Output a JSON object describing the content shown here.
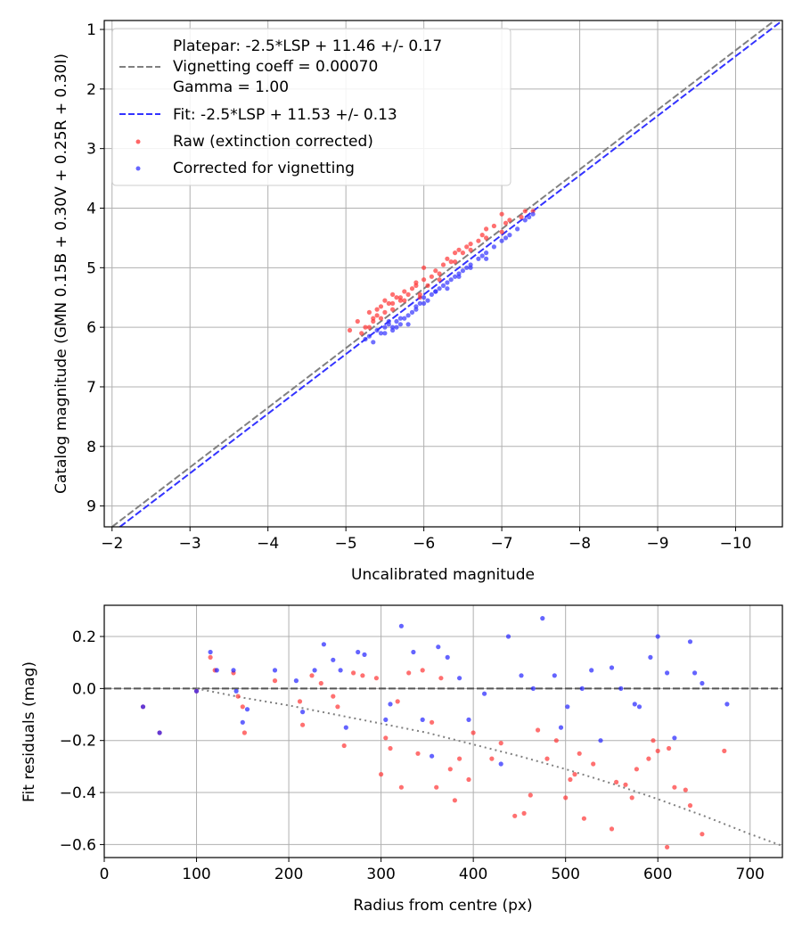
{
  "chart_data": [
    {
      "id": "calibration",
      "type": "scatter",
      "xlabel": "Uncalibrated magnitude",
      "ylabel": "Catalog magnitude (GMN 0.15B + 0.30V + 0.25R + 0.30I)",
      "xlim": [
        -1.9,
        -10.6
      ],
      "ylim": [
        9.35,
        0.85
      ],
      "x_ticks": [
        -2,
        -3,
        -4,
        -5,
        -6,
        -7,
        -8,
        -9,
        -10
      ],
      "x_tick_labels": [
        "−2",
        "−3",
        "−4",
        "−5",
        "−6",
        "−7",
        "−8",
        "−9",
        "−10"
      ],
      "y_ticks": [
        1,
        2,
        3,
        4,
        5,
        6,
        7,
        8,
        9
      ],
      "y_tick_labels": [
        "1",
        "2",
        "3",
        "4",
        "5",
        "6",
        "7",
        "8",
        "9"
      ],
      "grid": true,
      "legend_position": "top-left",
      "legend": [
        {
          "label": "Platepar: -2.5*LSP + 11.46 +/- 0.17",
          "style": "dashed-line",
          "color": "#808080"
        },
        {
          "label": "Vignetting coeff = 0.00070",
          "style": "none",
          "color": ""
        },
        {
          "label": "Gamma = 1.00",
          "style": "none",
          "color": ""
        },
        {
          "label": "Fit: -2.5*LSP + 11.53 +/- 0.13",
          "style": "dashed-line",
          "color": "#3333ff"
        },
        {
          "label": "Raw (extinction corrected)",
          "style": "dot",
          "color": "#ff3333"
        },
        {
          "label": "Corrected for vignetting",
          "style": "dot",
          "color": "#3333ff"
        }
      ],
      "series": [
        {
          "name": "Platepar line",
          "kind": "line",
          "color": "#808080",
          "dash": true,
          "x": [
            -1.9,
            -10.6
          ],
          "y": [
            9.45,
            0.75
          ]
        },
        {
          "name": "Fit line",
          "kind": "line",
          "color": "#3333ff",
          "dash": true,
          "x": [
            -1.9,
            -10.6
          ],
          "y": [
            9.55,
            0.85
          ]
        },
        {
          "name": "Raw (extinction corrected)",
          "kind": "scatter",
          "color": "#ff3333",
          "x": [
            -5.05,
            -5.15,
            -5.25,
            -5.3,
            -5.35,
            -5.4,
            -5.45,
            -5.5,
            -5.5,
            -5.55,
            -5.6,
            -5.6,
            -5.65,
            -5.7,
            -5.75,
            -5.8,
            -5.85,
            -5.9,
            -5.95,
            -6.0,
            -6.05,
            -6.1,
            -6.15,
            -6.2,
            -6.25,
            -6.3,
            -6.35,
            -6.4,
            -6.45,
            -6.5,
            -6.55,
            -6.6,
            -6.7,
            -6.75,
            -6.8,
            -6.9,
            -7.0,
            -7.05,
            -7.1,
            -7.25,
            -7.3,
            -7.4,
            -5.2,
            -5.3,
            -5.4,
            -5.6,
            -5.7,
            -5.9,
            -6.0,
            -6.2,
            -6.4,
            -6.6,
            -6.8,
            -7.0,
            -5.35,
            -5.45,
            -5.75,
            -5.95
          ],
          "y": [
            6.05,
            5.9,
            6.0,
            5.75,
            5.85,
            5.7,
            5.65,
            5.75,
            5.55,
            5.6,
            5.6,
            5.45,
            5.5,
            5.55,
            5.4,
            5.45,
            5.35,
            5.3,
            5.5,
            5.2,
            5.3,
            5.15,
            5.05,
            5.1,
            4.95,
            4.85,
            4.9,
            4.75,
            4.7,
            4.75,
            4.65,
            4.7,
            4.55,
            4.45,
            4.5,
            4.3,
            4.4,
            4.25,
            4.2,
            4.15,
            4.05,
            4.05,
            6.1,
            6.0,
            5.8,
            5.7,
            5.5,
            5.25,
            5.0,
            5.2,
            4.9,
            4.6,
            4.35,
            4.1,
            5.9,
            5.85,
            5.55,
            5.45
          ]
        },
        {
          "name": "Corrected for vignetting",
          "kind": "scatter",
          "color": "#3333ff",
          "x": [
            -5.25,
            -5.3,
            -5.4,
            -5.45,
            -5.5,
            -5.55,
            -5.6,
            -5.65,
            -5.7,
            -5.75,
            -5.8,
            -5.85,
            -5.9,
            -6.0,
            -6.05,
            -6.1,
            -6.15,
            -6.2,
            -6.25,
            -6.3,
            -6.35,
            -6.4,
            -6.45,
            -6.5,
            -6.55,
            -6.6,
            -6.7,
            -6.75,
            -6.8,
            -6.9,
            -7.0,
            -7.05,
            -7.2,
            -7.3,
            -7.4,
            -5.35,
            -5.5,
            -5.6,
            -5.7,
            -5.8,
            -5.95,
            -6.0,
            -6.15,
            -6.3,
            -6.45,
            -6.6,
            -6.8,
            -7.1,
            -7.35,
            -5.55,
            -5.65,
            -5.9
          ],
          "y": [
            6.2,
            6.15,
            6.05,
            6.1,
            6.0,
            5.95,
            6.0,
            5.9,
            5.95,
            5.85,
            5.8,
            5.75,
            5.65,
            5.6,
            5.55,
            5.45,
            5.4,
            5.35,
            5.3,
            5.25,
            5.2,
            5.15,
            5.1,
            5.05,
            5.0,
            4.95,
            4.85,
            4.8,
            4.75,
            4.65,
            4.55,
            4.5,
            4.35,
            4.2,
            4.1,
            6.25,
            6.1,
            6.05,
            5.85,
            5.95,
            5.6,
            5.5,
            5.4,
            5.35,
            5.15,
            5.0,
            4.85,
            4.45,
            4.15,
            5.9,
            6.0,
            5.7
          ]
        }
      ]
    },
    {
      "id": "residuals",
      "type": "scatter",
      "xlabel": "Radius from centre (px)",
      "ylabel": "Fit residuals (mag)",
      "xlim": [
        0,
        735
      ],
      "ylim": [
        -0.65,
        0.32
      ],
      "x_ticks": [
        0,
        100,
        200,
        300,
        400,
        500,
        600,
        700
      ],
      "x_tick_labels": [
        "0",
        "100",
        "200",
        "300",
        "400",
        "500",
        "600",
        "700"
      ],
      "y_ticks": [
        0.2,
        0.0,
        -0.2,
        -0.4,
        -0.6
      ],
      "y_tick_labels": [
        "0.2",
        "0.0",
        "−0.2",
        "−0.4",
        "−0.6"
      ],
      "grid": true,
      "series": [
        {
          "name": "Zero line",
          "kind": "line",
          "color": "#555555",
          "dash": true,
          "x": [
            0,
            735
          ],
          "y": [
            0,
            0
          ]
        },
        {
          "name": "Vignetting curve",
          "kind": "curve",
          "color": "#808080",
          "dotted": true,
          "x": [
            100,
            150,
            200,
            250,
            300,
            350,
            400,
            450,
            500,
            550,
            600,
            650,
            700,
            735
          ],
          "y": [
            0.0,
            -0.035,
            -0.065,
            -0.1,
            -0.135,
            -0.17,
            -0.215,
            -0.26,
            -0.31,
            -0.365,
            -0.425,
            -0.49,
            -0.56,
            -0.605
          ]
        },
        {
          "name": "Raw residuals",
          "kind": "scatter",
          "color": "#ff3333",
          "x": [
            42,
            60,
            100,
            115,
            120,
            140,
            145,
            150,
            152,
            185,
            212,
            215,
            225,
            235,
            248,
            253,
            260,
            270,
            280,
            295,
            300,
            305,
            310,
            318,
            322,
            330,
            340,
            345,
            355,
            360,
            365,
            375,
            380,
            385,
            395,
            400,
            420,
            430,
            445,
            455,
            462,
            470,
            480,
            490,
            500,
            505,
            510,
            515,
            520,
            530,
            550,
            555,
            565,
            572,
            577,
            590,
            595,
            600,
            610,
            612,
            618,
            630,
            635,
            648,
            672
          ],
          "x_note": "radius px",
          "y": [
            -0.07,
            -0.17,
            -0.01,
            0.12,
            0.07,
            0.06,
            -0.03,
            -0.07,
            -0.17,
            0.03,
            -0.05,
            -0.14,
            0.05,
            0.02,
            -0.03,
            -0.07,
            -0.22,
            0.06,
            0.05,
            0.04,
            -0.33,
            -0.19,
            -0.23,
            -0.05,
            -0.38,
            0.06,
            -0.25,
            0.07,
            -0.13,
            -0.38,
            0.04,
            -0.31,
            -0.43,
            -0.27,
            -0.35,
            -0.17,
            -0.27,
            -0.21,
            -0.49,
            -0.48,
            -0.41,
            -0.16,
            -0.27,
            -0.2,
            -0.42,
            -0.35,
            -0.33,
            -0.25,
            -0.5,
            -0.29,
            -0.54,
            -0.36,
            -0.37,
            -0.42,
            -0.31,
            -0.27,
            -0.2,
            -0.24,
            -0.61,
            -0.23,
            -0.38,
            -0.39,
            -0.45,
            -0.56,
            -0.24
          ],
          "y_note": "mag"
        },
        {
          "name": "Corrected residuals",
          "kind": "scatter",
          "color": "#2222ff",
          "x": [
            42,
            60,
            100,
            115,
            122,
            140,
            143,
            150,
            155,
            185,
            208,
            215,
            228,
            238,
            248,
            256,
            262,
            275,
            282,
            305,
            310,
            322,
            335,
            345,
            355,
            362,
            372,
            385,
            395,
            412,
            430,
            438,
            452,
            465,
            475,
            488,
            495,
            502,
            518,
            528,
            538,
            550,
            560,
            575,
            580,
            592,
            600,
            610,
            618,
            635,
            640,
            648,
            675
          ],
          "y": [
            -0.07,
            -0.17,
            -0.01,
            0.14,
            0.07,
            0.07,
            -0.01,
            -0.13,
            -0.08,
            0.07,
            0.03,
            -0.09,
            0.07,
            0.17,
            0.11,
            0.07,
            -0.15,
            0.14,
            0.13,
            -0.12,
            -0.06,
            0.24,
            0.14,
            -0.12,
            -0.26,
            0.16,
            0.12,
            0.04,
            -0.12,
            -0.02,
            -0.29,
            0.2,
            0.05,
            0.0,
            0.27,
            0.05,
            -0.15,
            -0.07,
            0.0,
            0.07,
            -0.2,
            0.08,
            0.0,
            -0.06,
            -0.07,
            0.12,
            0.2,
            0.06,
            -0.19,
            0.18,
            0.06,
            0.02,
            -0.06
          ]
        }
      ]
    }
  ]
}
